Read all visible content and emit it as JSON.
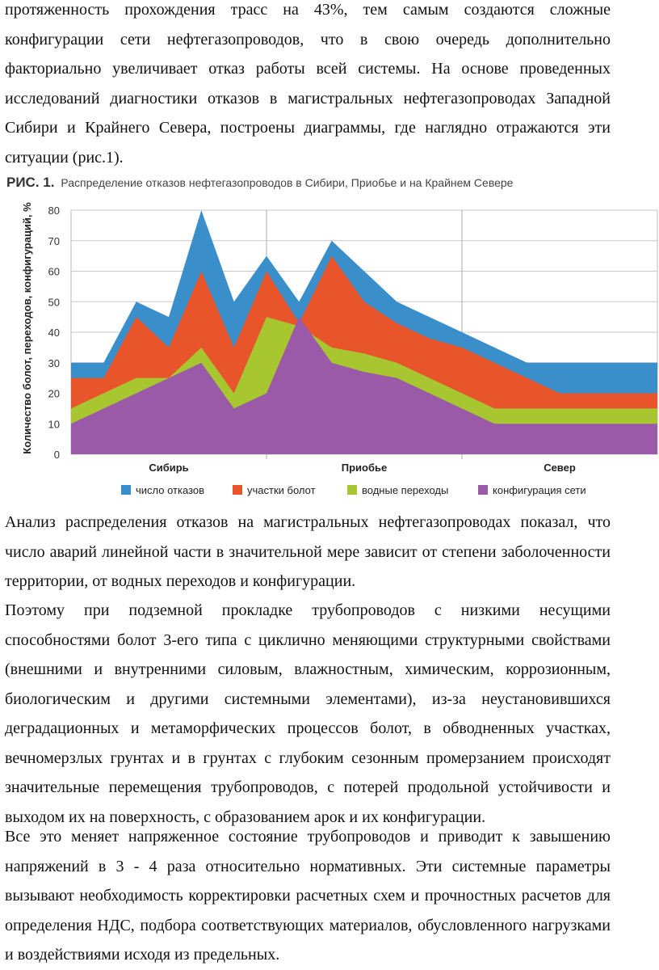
{
  "paragraphs": {
    "p1": "протяженность прохождения трасс на 43%, тем самым создаются сложные конфигурации сети нефтегазопроводов, что в свою очередь дополнительно факториально увеличивает отказ работы всей системы. На основе проведенных исследований диагностики отказов в магистральных нефтегазопроводах Западной Сибири и Крайнего Севера, построены диаграммы, где наглядно отражаются эти ситуации (рис.1).",
    "p2": "Анализ распределения отказов на магистральных нефтегазопроводах показал, что число аварий линейной части в значительной мере зависит от степени заболоченности территории, от водных переходов и конфигурации.",
    "p3": "Поэтому при подземной прокладке трубопроводов с низкими несущими способностями болот 3-его типа с циклично меняющими структурными свойствами (внешними и внутренними силовым, влажностным, химическим, коррозионным, биологическим и другими системными элементами), из-за неустановившихся деградационных и метаморфических процессов болот, в обводненных участках, вечномерзлых грунтах и в грунтах с глубоким сезонным промерзанием происходят значительные перемещения трубопроводов, с потерей продольной устойчивости и выходом их на поверхность, с образованием арок и их конфигурации.",
    "p4": "Все это меняет напряженное состояние трубопроводов и приводит к завышению напряжений в 3 - 4 раза относительно нормативных. Эти системные параметры вызывают необходимость корректировки расчетных схем и прочностных расчетов для определения НДС, подбора соответствующих материалов, обусловленного нагрузками и воздействиями исходя из предельных."
  },
  "figure": {
    "label": "РИС. 1.",
    "caption": "Распределение отказов нефтегазопроводов в Сибири, Приобье и на Крайнем Севере"
  },
  "chart_data": {
    "type": "area",
    "stacked": false,
    "ylabel": "Количество болот, переходов, конфигураций, %",
    "ylim": [
      0,
      80
    ],
    "yticks": [
      "0",
      "10",
      "20",
      "30",
      "40",
      "50",
      "60",
      "70",
      "80"
    ],
    "regions": [
      "Сибирь",
      "Приобье",
      "Север"
    ],
    "x": [
      0,
      1,
      2,
      3,
      4,
      5,
      6,
      7,
      8,
      9,
      10,
      11,
      12,
      13,
      14,
      15,
      16,
      17,
      18
    ],
    "grid": true,
    "legend_position": "bottom",
    "series": [
      {
        "name": "число отказов",
        "color": "#3a8fcb",
        "values": [
          30,
          30,
          50,
          45,
          80,
          50,
          65,
          50,
          70,
          60,
          50,
          45,
          40,
          35,
          30,
          30,
          30,
          30,
          30
        ]
      },
      {
        "name": "участки болот",
        "color": "#e8552b",
        "values": [
          25,
          25,
          45,
          35,
          60,
          35,
          60,
          43,
          65,
          50,
          43,
          38,
          35,
          30,
          25,
          20,
          20,
          20,
          20
        ]
      },
      {
        "name": "водные переходы",
        "color": "#a8c62f",
        "values": [
          15,
          20,
          25,
          25,
          35,
          20,
          45,
          42,
          35,
          33,
          30,
          25,
          20,
          15,
          15,
          15,
          15,
          15,
          15
        ]
      },
      {
        "name": "конфигурация сети",
        "color": "#9a5aa8",
        "values": [
          10,
          15,
          20,
          25,
          30,
          15,
          20,
          45,
          30,
          27,
          25,
          20,
          15,
          10,
          10,
          10,
          10,
          10,
          10
        ]
      }
    ]
  }
}
